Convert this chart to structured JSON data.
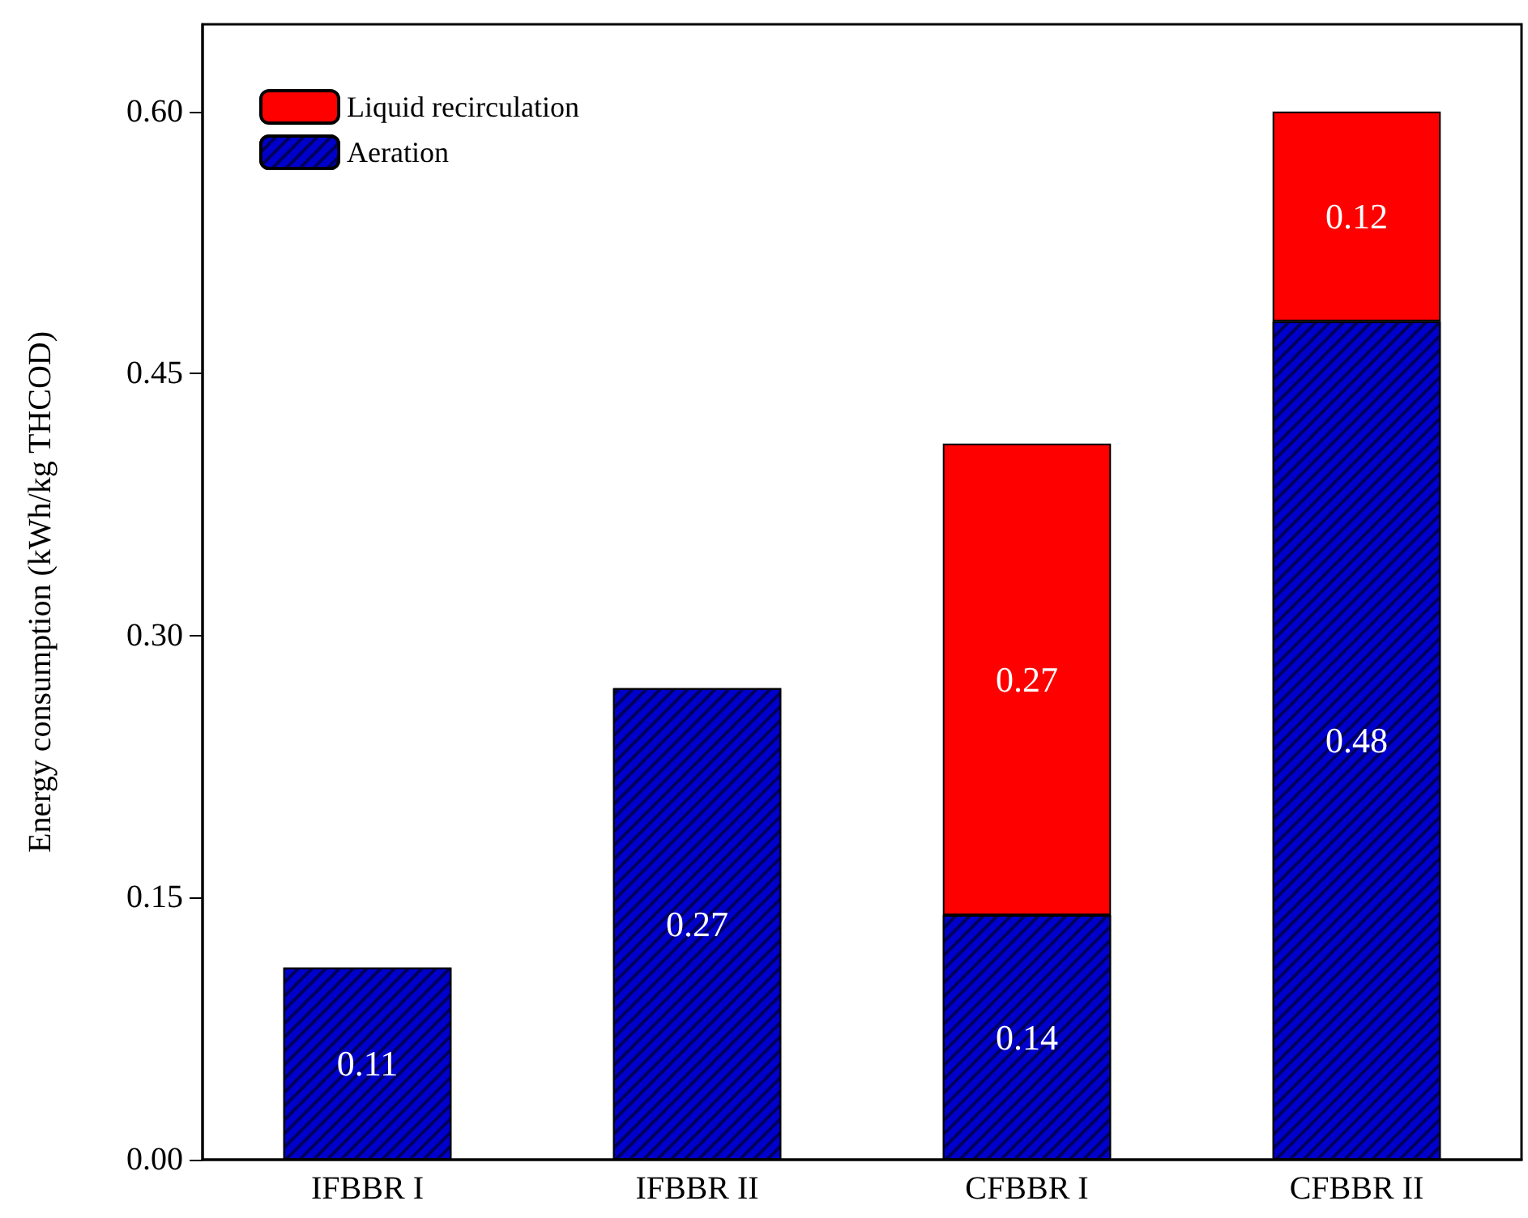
{
  "chart_data": {
    "type": "bar",
    "ylabel": "Energy consumption (kWh/kg THCOD)",
    "categories": [
      "IFBBR I",
      "IFBBR II",
      "CFBBR I",
      "CFBBR II"
    ],
    "series": [
      {
        "name": "Aeration",
        "color": "#0000cc",
        "values": [
          0.11,
          0.27,
          0.14,
          0.48
        ]
      },
      {
        "name": "Liquid recirculation",
        "color": "#ff0000",
        "values": [
          null,
          null,
          0.27,
          0.12
        ]
      }
    ],
    "stacked": true,
    "data_labels": true,
    "ylim": [
      0,
      0.65
    ],
    "yticks": [
      {
        "value": 0,
        "label": "0.00"
      },
      0.15,
      {
        "value": 0.3,
        "label": "0.30"
      },
      0.45,
      {
        "value": 0.6,
        "label": "0.60"
      }
    ],
    "grid": false,
    "legend": "top left"
  }
}
